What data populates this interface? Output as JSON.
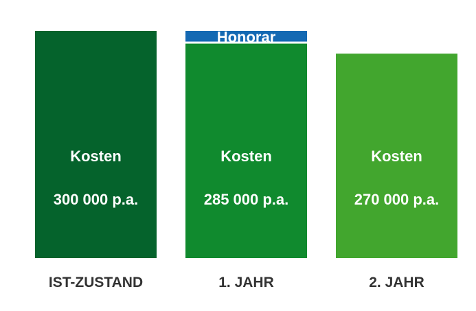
{
  "chart_data": {
    "type": "bar",
    "stacked": true,
    "categories": [
      "IST-ZUSTAND",
      "1. JAHR",
      "2. JAHR"
    ],
    "series": [
      {
        "name": "Kosten",
        "values": [
          300000,
          285000,
          270000
        ],
        "data_labels": [
          "300 000 p.a.",
          "285 000 p.a.",
          "270 000 p.a."
        ],
        "colors": [
          "#05632c",
          "#108a2e",
          "#42a62e"
        ]
      },
      {
        "name": "Honorar",
        "values": [
          0,
          15000,
          0
        ],
        "colors": [
          "#1469b3",
          "#1469b3",
          "#1469b3"
        ]
      }
    ],
    "ylim": [
      0,
      300000
    ],
    "grid": false,
    "legend": "none"
  }
}
